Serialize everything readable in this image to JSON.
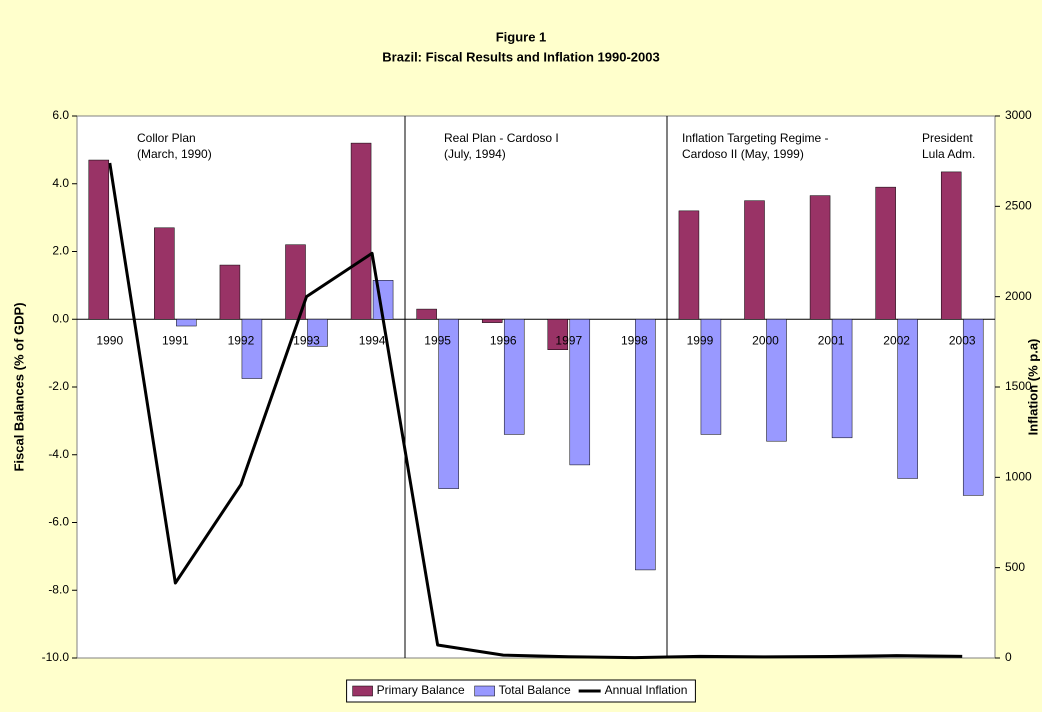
{
  "chart_data": {
    "type": "bar",
    "title": "Figure 1",
    "subtitle": "Brazil: Fiscal Results and Inflation 1990-2003",
    "y_label": "Fiscal Balances (% of GDP)",
    "y2_label": "Inflation (% p.a)",
    "categories": [
      "1990",
      "1991",
      "1992",
      "1993",
      "1994",
      "1995",
      "1996",
      "1997",
      "1998",
      "1999",
      "2000",
      "2001",
      "2002",
      "2003"
    ],
    "series": [
      {
        "name": "Primary Balance",
        "color": "#993366",
        "values": [
          4.7,
          2.7,
          1.6,
          2.2,
          5.2,
          0.3,
          -0.1,
          -0.9,
          0.0,
          3.2,
          3.5,
          3.65,
          3.9,
          4.35
        ]
      },
      {
        "name": "Total Balance",
        "color": "#9999ff",
        "values": [
          null,
          -0.2,
          -1.75,
          -0.8,
          1.15,
          -5.0,
          -3.4,
          -4.3,
          -7.4,
          -3.4,
          -3.6,
          -3.5,
          -4.7,
          -5.2
        ]
      },
      {
        "name": "Annual Inflation",
        "color": "#000000",
        "type": "line",
        "axis": "y2",
        "values": [
          2740,
          415,
          960,
          2000,
          2240,
          72,
          16,
          7,
          2,
          9,
          6,
          8,
          13,
          9
        ]
      }
    ],
    "ylim": [
      -10,
      6
    ],
    "yticks": [
      {
        "value": -10,
        "label": "-10.0"
      },
      {
        "value": -8,
        "label": "-8.0"
      },
      {
        "value": -6,
        "label": "-6.0"
      },
      {
        "value": -4,
        "label": "-4.0"
      },
      {
        "value": -2,
        "label": "-2.0"
      },
      {
        "value": 0,
        "label": "0.0"
      },
      {
        "value": 2,
        "label": "2.0"
      },
      {
        "value": 4,
        "label": "4.0"
      },
      {
        "value": 6,
        "label": "6.0"
      }
    ],
    "y2lim": [
      0,
      3000
    ],
    "y2ticks": [
      0,
      500,
      1000,
      1500,
      2000,
      2500,
      3000
    ],
    "annotations": [
      [
        "Collor Plan",
        "(March, 1990)"
      ],
      [
        "Real Plan - Cardoso I",
        "(July, 1994)"
      ],
      [
        "Inflation Targeting Regime -",
        "Cardoso II (May, 1999)"
      ],
      [
        "President",
        "Lula Adm."
      ]
    ],
    "legend": "bottom"
  }
}
